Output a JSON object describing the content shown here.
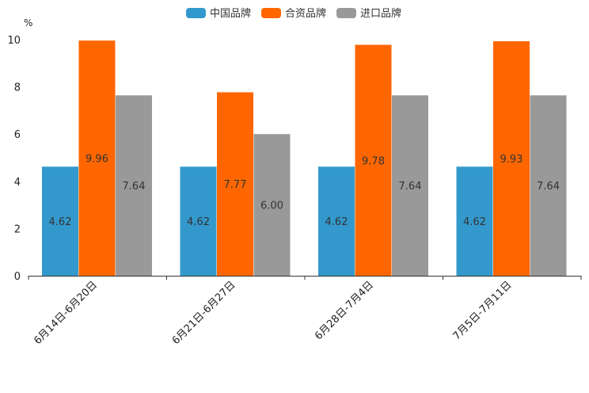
{
  "chart_data": {
    "type": "bar",
    "title": "",
    "xlabel": "",
    "ylabel": "%",
    "ylim": [
      0,
      10
    ],
    "yticks": [
      0,
      2,
      4,
      6,
      8,
      10
    ],
    "legend_position": "top-center",
    "categories": [
      "6月14日-6月20日",
      "6月21日-6月27日",
      "6月28日-7月4日",
      "7月5日-7月11日"
    ],
    "series": [
      {
        "name": "中国品牌",
        "color": "#3399cc",
        "values": [
          4.62,
          4.62,
          4.62,
          4.62
        ],
        "labels": [
          "4.62",
          "4.62",
          "4.62",
          "4.62"
        ]
      },
      {
        "name": "合资品牌",
        "color": "#ff6600",
        "values": [
          9.96,
          7.77,
          9.78,
          9.93
        ],
        "labels": [
          "9.96",
          "7.77",
          "9.78",
          "9.93"
        ]
      },
      {
        "name": "进口品牌",
        "color": "#999999",
        "values": [
          7.64,
          6.0,
          7.64,
          7.64
        ],
        "labels": [
          "7.64",
          "6.00",
          "7.64",
          "7.64"
        ]
      }
    ]
  }
}
